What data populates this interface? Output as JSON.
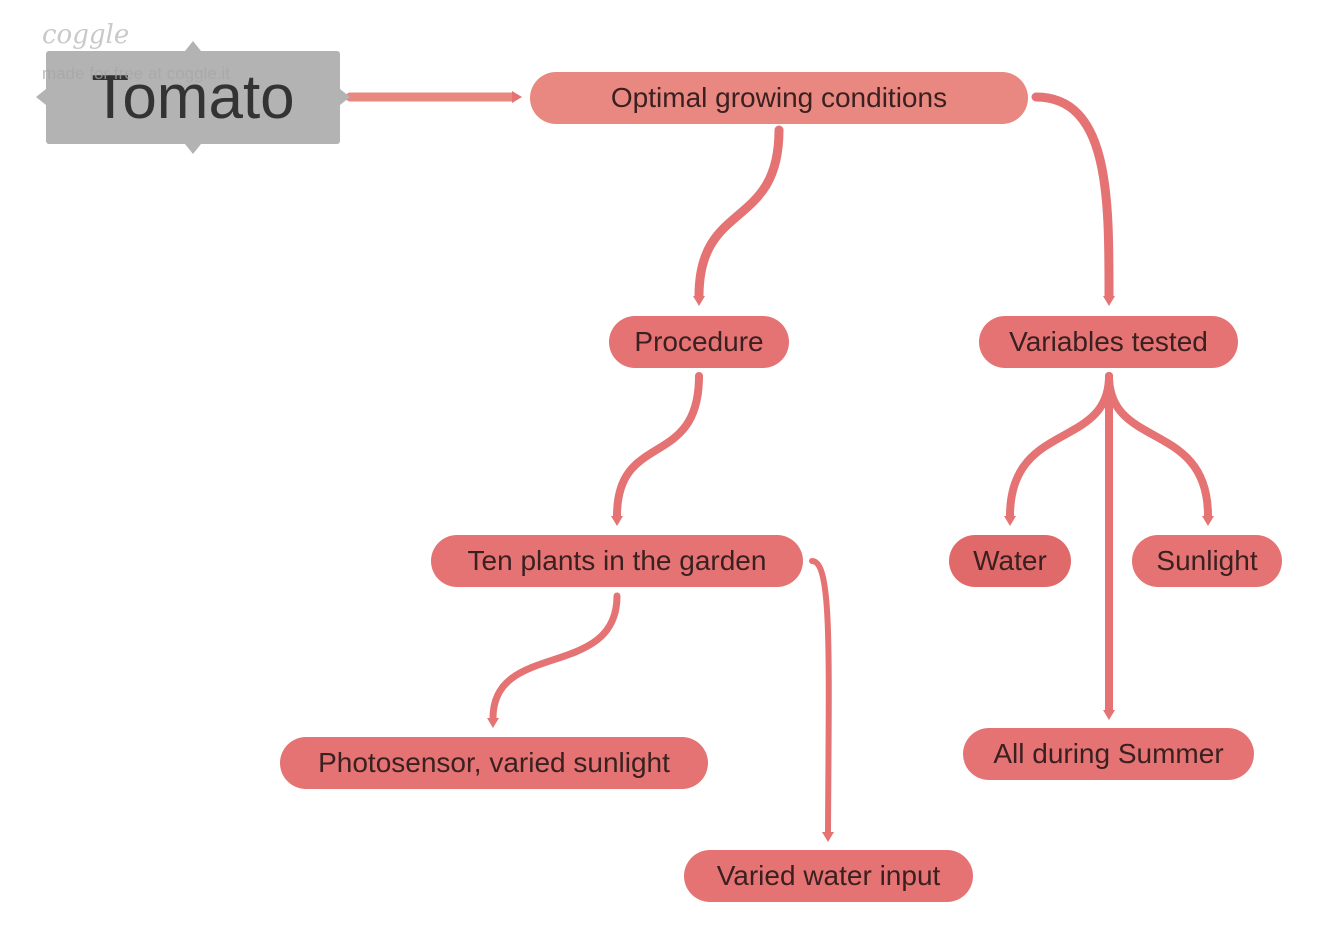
{
  "watermark": {
    "logo": "coggle",
    "tagline": "made for free at coggle.it"
  },
  "root": {
    "label": "Tomato"
  },
  "nodes": {
    "optimal": "Optimal growing conditions",
    "procedure": "Procedure",
    "variables": "Variables tested",
    "ten_plants": "Ten plants in the garden",
    "photosensor": "Photosensor, varied sunlight",
    "varied_water": "Varied water input",
    "water": "Water",
    "sunlight": "Sunlight",
    "summer": "All during Summer"
  },
  "colors": {
    "root_bg": "#b3b3b3",
    "node_bg": "#e57373",
    "branch": "#e57373",
    "text_dark": "#333333"
  }
}
